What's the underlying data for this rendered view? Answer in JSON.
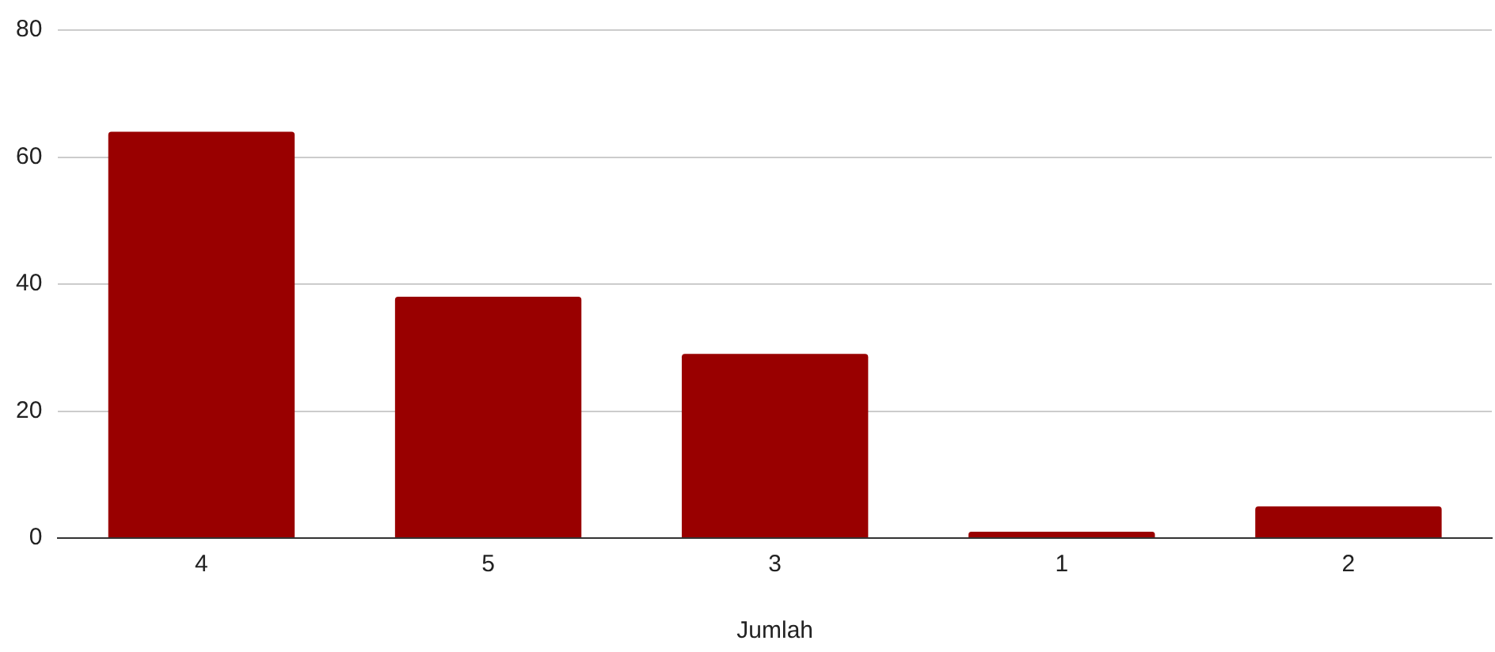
{
  "chart_data": {
    "type": "bar",
    "xlabel": "Jumlah",
    "categories": [
      "4",
      "5",
      "3",
      "1",
      "2"
    ],
    "values": [
      64,
      38,
      29,
      1,
      5
    ],
    "color": "#990000",
    "ylim": [
      0,
      80
    ],
    "yticks": [
      0,
      20,
      40,
      60,
      80
    ],
    "grid": "y"
  }
}
